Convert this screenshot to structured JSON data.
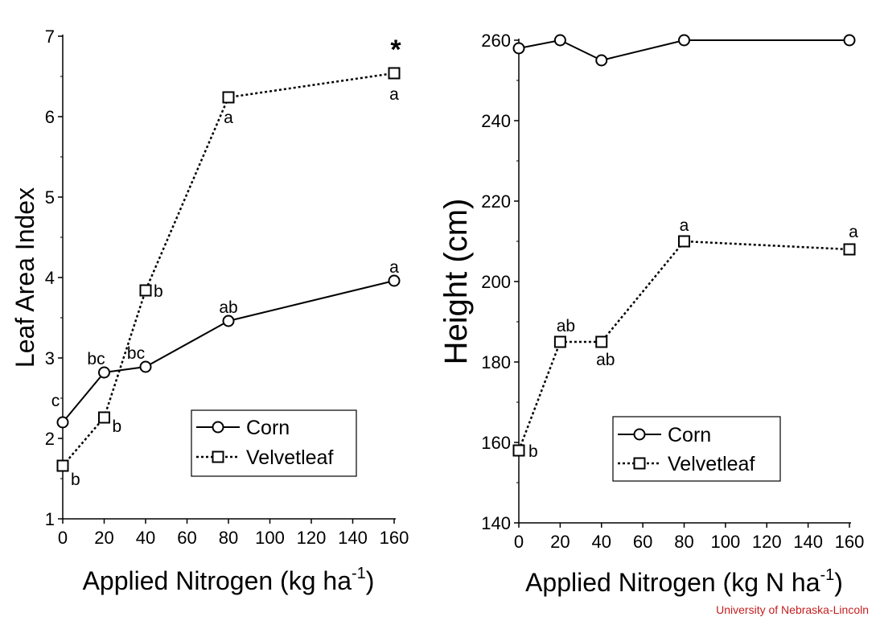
{
  "colors": {
    "axis": "#000000",
    "credit": "#c41e1e",
    "marker_fill": "#ffffff"
  },
  "credit": "University of Nebraska-Lincoln",
  "chart_data": [
    {
      "type": "line",
      "ylabel": "Leaf Area Index",
      "xlabel_main": "Applied Nitrogen (kg ha",
      "xlabel_sup": "-1",
      "xlabel_end": ")",
      "x_ticks": [
        0,
        20,
        40,
        60,
        80,
        100,
        120,
        140,
        160
      ],
      "y_ticks": [
        1,
        2,
        3,
        4,
        5,
        6,
        7
      ],
      "xlim": [
        0,
        160
      ],
      "ylim": [
        1,
        7
      ],
      "annotation": "*",
      "legend": {
        "entries": [
          "Corn",
          "Velvetleaf"
        ],
        "placement": "bottom-right"
      },
      "series": [
        {
          "name": "Corn",
          "marker": "circle",
          "line": "solid",
          "x": [
            0,
            20,
            40,
            80,
            160
          ],
          "y": [
            2.2,
            2.82,
            2.89,
            3.46,
            3.96
          ],
          "labels": [
            "c",
            "bc",
            "bc",
            "ab",
            "a"
          ]
        },
        {
          "name": "Velvetleaf",
          "marker": "square",
          "line": "dotted",
          "x": [
            0,
            20,
            40,
            80,
            160
          ],
          "y": [
            1.66,
            2.26,
            3.84,
            6.24,
            6.54
          ],
          "labels": [
            "b",
            "b",
            "b",
            "a",
            "a"
          ]
        }
      ]
    },
    {
      "type": "line",
      "ylabel": "Height (cm)",
      "xlabel_main": "Applied Nitrogen (kg N ha",
      "xlabel_sup": "-1",
      "xlabel_end": ")",
      "x_ticks": [
        0,
        20,
        40,
        60,
        80,
        100,
        120,
        140,
        160
      ],
      "y_ticks": [
        140,
        160,
        180,
        200,
        220,
        240,
        260
      ],
      "xlim": [
        0,
        160
      ],
      "ylim": [
        140,
        260
      ],
      "legend": {
        "entries": [
          "Corn",
          "Velvetleaf"
        ],
        "placement": "bottom-right"
      },
      "series": [
        {
          "name": "Corn",
          "marker": "circle",
          "line": "solid",
          "x": [
            0,
            20,
            40,
            80,
            160
          ],
          "y": [
            258,
            260,
            255,
            260,
            260
          ],
          "labels": []
        },
        {
          "name": "Velvetleaf",
          "marker": "square",
          "line": "dotted",
          "x": [
            0,
            20,
            40,
            80,
            160
          ],
          "y": [
            158,
            185,
            185,
            210,
            208
          ],
          "labels": [
            "b",
            "ab",
            "ab",
            "a",
            "a"
          ]
        }
      ]
    }
  ]
}
